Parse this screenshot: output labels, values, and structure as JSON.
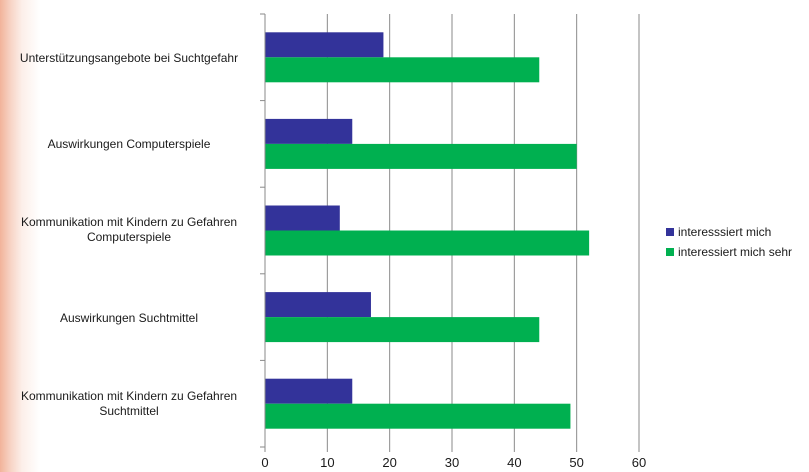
{
  "chart_data": {
    "type": "bar",
    "orientation": "horizontal",
    "categories": [
      "Unterstützungsangebote bei Suchtgefahr",
      "Auswirkungen Computerspiele",
      "Kommunikation mit Kindern zu Gefahren\nComputerspiele",
      "Auswirkungen Suchtmittel",
      "Kommunikation mit Kindern zu Gefahren\nSuchtmittel"
    ],
    "series": [
      {
        "name": "interesssiert mich",
        "color": "#33339a",
        "values": [
          19,
          14,
          12,
          17,
          14
        ]
      },
      {
        "name": "interessiert mich sehr",
        "color": "#00b050",
        "values": [
          44,
          50,
          52,
          44,
          49
        ]
      }
    ],
    "xlim": [
      0,
      60
    ],
    "xticks": [
      "0",
      "10",
      "20",
      "30",
      "40",
      "50",
      "60"
    ],
    "grid": true,
    "legend_position": "right",
    "title": "",
    "xlabel": "",
    "ylabel": ""
  }
}
